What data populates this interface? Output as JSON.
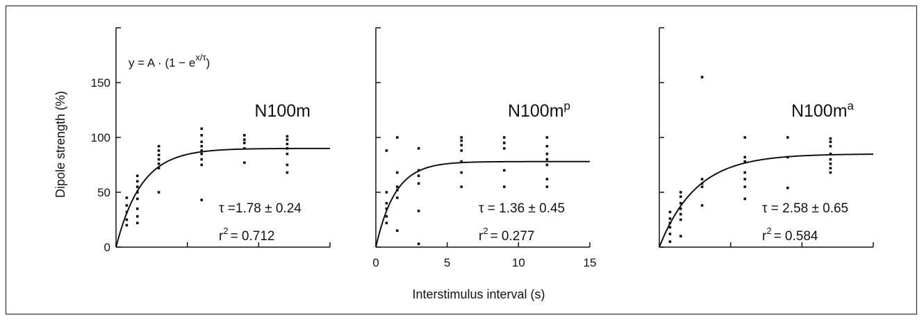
{
  "chart_data": [
    {
      "type": "scatter",
      "panel": "left",
      "title": "N100m",
      "title_sup": "",
      "xlabel": "",
      "ylabel": "Dipole strength (%)",
      "ylim": [
        0,
        200
      ],
      "xlim": [
        0,
        15
      ],
      "yticks": [
        0,
        50,
        100,
        150
      ],
      "xticks": [
        0,
        5,
        10,
        15
      ],
      "show_x_tick_labels": false,
      "show_y_tick_labels": true,
      "formula": "y = A · (1 − e",
      "formula_sup": "x/τ",
      "formula_end": ")",
      "stat_tau": "τ =1.78 ± 0.24",
      "stat_r2_prefix": "r",
      "stat_r2_sup": "2",
      "stat_r2_value": "= 0.712",
      "fit": {
        "A": 90,
        "tau": 1.78
      },
      "points": [
        [
          0.75,
          20
        ],
        [
          0.75,
          25
        ],
        [
          0.75,
          32
        ],
        [
          0.75,
          38
        ],
        [
          0.75,
          45
        ],
        [
          1.5,
          22
        ],
        [
          1.5,
          28
        ],
        [
          1.5,
          35
        ],
        [
          1.5,
          44
        ],
        [
          1.5,
          50
        ],
        [
          1.5,
          55
        ],
        [
          1.5,
          60
        ],
        [
          1.5,
          65
        ],
        [
          3,
          50
        ],
        [
          3,
          72
        ],
        [
          3,
          76
        ],
        [
          3,
          80
        ],
        [
          3,
          84
        ],
        [
          3,
          88
        ],
        [
          3,
          92
        ],
        [
          6,
          43
        ],
        [
          6,
          75
        ],
        [
          6,
          80
        ],
        [
          6,
          85
        ],
        [
          6,
          88
        ],
        [
          6,
          92
        ],
        [
          6,
          96
        ],
        [
          6,
          102
        ],
        [
          6,
          108
        ],
        [
          9,
          77
        ],
        [
          9,
          90
        ],
        [
          9,
          95
        ],
        [
          9,
          98
        ],
        [
          9,
          102
        ],
        [
          12,
          68
        ],
        [
          12,
          75
        ],
        [
          12,
          85
        ],
        [
          12,
          90
        ],
        [
          12,
          94
        ],
        [
          12,
          98
        ],
        [
          12,
          101
        ]
      ]
    },
    {
      "type": "scatter",
      "panel": "middle",
      "title": "N100m",
      "title_sup": "p",
      "xlabel": "Interstimulus interval (s)",
      "ylabel": "",
      "ylim": [
        0,
        200
      ],
      "xlim": [
        0,
        15
      ],
      "yticks": [
        0,
        50,
        100,
        150
      ],
      "xticks": [
        0,
        5,
        10,
        15
      ],
      "xtick_labels": [
        "0",
        "5",
        "10",
        "15"
      ],
      "show_x_tick_labels": true,
      "show_y_tick_labels": false,
      "stat_tau": "τ = 1.36 ± 0.45",
      "stat_r2_prefix": "r",
      "stat_r2_sup": "2",
      "stat_r2_value": "= 0.277",
      "fit": {
        "A": 78,
        "tau": 1.36
      },
      "points": [
        [
          0.75,
          22
        ],
        [
          0.75,
          28
        ],
        [
          0.75,
          35
        ],
        [
          0.75,
          40
        ],
        [
          0.75,
          50
        ],
        [
          0.75,
          88
        ],
        [
          1.5,
          15
        ],
        [
          1.5,
          45
        ],
        [
          1.5,
          52
        ],
        [
          1.5,
          55
        ],
        [
          1.5,
          68
        ],
        [
          1.5,
          100
        ],
        [
          3,
          3
        ],
        [
          3,
          33
        ],
        [
          3,
          58
        ],
        [
          3,
          65
        ],
        [
          3,
          70
        ],
        [
          3,
          90
        ],
        [
          6,
          55
        ],
        [
          6,
          68
        ],
        [
          6,
          78
        ],
        [
          6,
          88
        ],
        [
          6,
          93
        ],
        [
          6,
          97
        ],
        [
          6,
          100
        ],
        [
          9,
          55
        ],
        [
          9,
          70
        ],
        [
          9,
          90
        ],
        [
          9,
          95
        ],
        [
          9,
          100
        ],
        [
          12,
          55
        ],
        [
          12,
          62
        ],
        [
          12,
          75
        ],
        [
          12,
          80
        ],
        [
          12,
          85
        ],
        [
          12,
          92
        ],
        [
          12,
          100
        ]
      ]
    },
    {
      "type": "scatter",
      "panel": "right",
      "title": "N100m",
      "title_sup": "a",
      "xlabel": "",
      "ylabel": "",
      "ylim": [
        0,
        200
      ],
      "xlim": [
        0,
        15
      ],
      "yticks": [
        0,
        50,
        100,
        150
      ],
      "xticks": [
        0,
        5,
        10,
        15
      ],
      "show_x_tick_labels": false,
      "show_y_tick_labels": false,
      "stat_tau": "τ = 2.58 ± 0.65",
      "stat_r2_prefix": "r",
      "stat_r2_sup": "2",
      "stat_r2_value": "= 0.584",
      "fit": {
        "A": 85,
        "tau": 2.58
      },
      "points": [
        [
          0.75,
          5
        ],
        [
          0.75,
          12
        ],
        [
          0.75,
          18
        ],
        [
          0.75,
          22
        ],
        [
          0.75,
          26
        ],
        [
          0.75,
          32
        ],
        [
          1.5,
          10
        ],
        [
          1.5,
          25
        ],
        [
          1.5,
          30
        ],
        [
          1.5,
          35
        ],
        [
          1.5,
          40
        ],
        [
          1.5,
          46
        ],
        [
          1.5,
          50
        ],
        [
          3,
          38
        ],
        [
          3,
          55
        ],
        [
          3,
          58
        ],
        [
          3,
          62
        ],
        [
          3,
          155
        ],
        [
          6,
          44
        ],
        [
          6,
          55
        ],
        [
          6,
          62
        ],
        [
          6,
          68
        ],
        [
          6,
          78
        ],
        [
          6,
          82
        ],
        [
          6,
          100
        ],
        [
          9,
          54
        ],
        [
          9,
          82
        ],
        [
          9,
          100
        ],
        [
          12,
          68
        ],
        [
          12,
          72
        ],
        [
          12,
          76
        ],
        [
          12,
          80
        ],
        [
          12,
          85
        ],
        [
          12,
          92
        ],
        [
          12,
          96
        ],
        [
          12,
          99
        ]
      ]
    }
  ]
}
